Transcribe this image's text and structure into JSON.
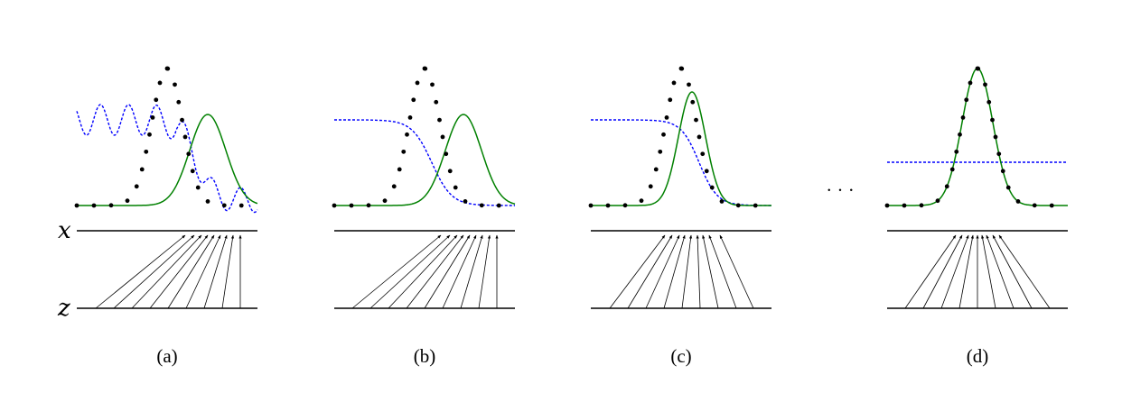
{
  "labels": {
    "x": "x",
    "z": "z"
  },
  "captions": [
    "(a)",
    "(b)",
    "(c)",
    "(d)"
  ],
  "ellipsis": "· · ·",
  "colors": {
    "data_distribution": "#000000",
    "generative_distribution": "#008000",
    "discriminator": "#0000ff",
    "axes": "#000000"
  }
}
